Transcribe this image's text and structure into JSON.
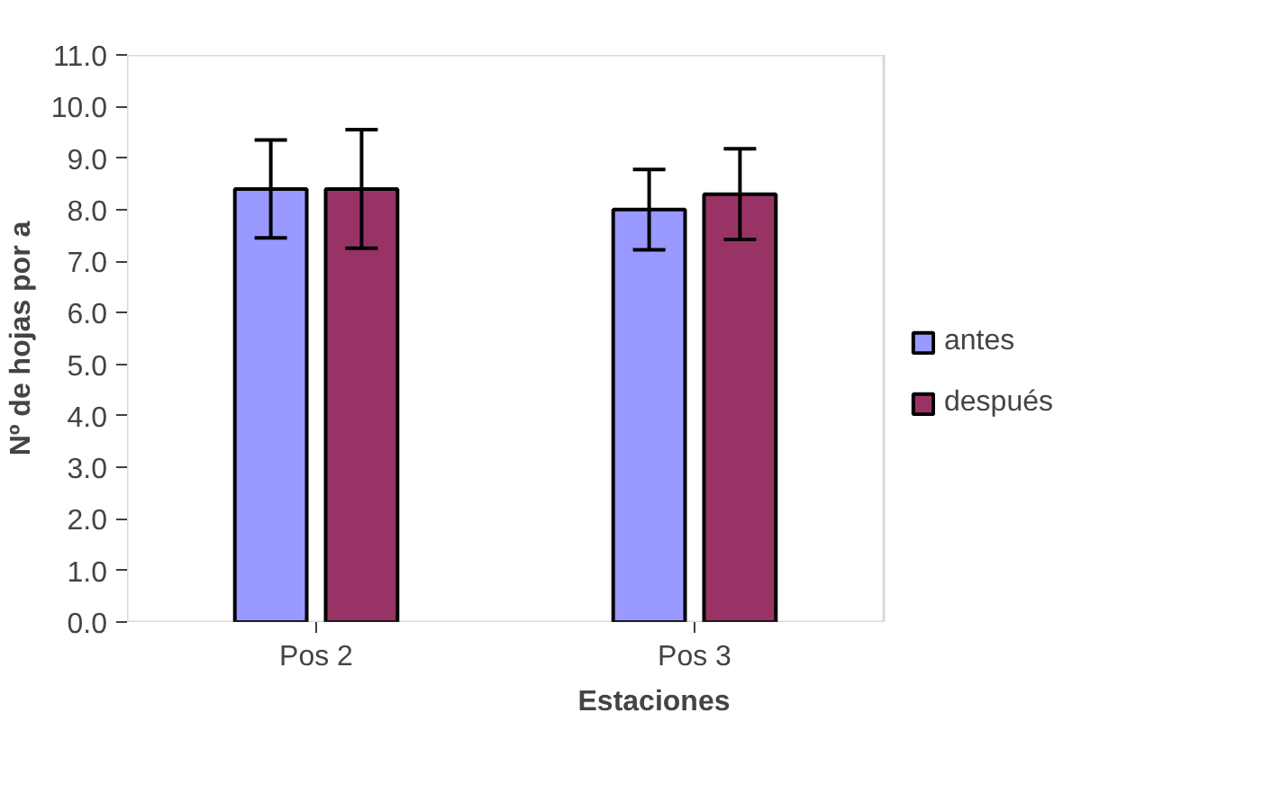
{
  "chart_data": {
    "type": "bar",
    "xlabel": "Estaciones",
    "ylabel": "Nº de hojas por a",
    "categories": [
      "Pos 2",
      "Pos 3"
    ],
    "series": [
      {
        "name": "antes",
        "color": "#9999ff",
        "values": [
          8.4,
          8.0
        ],
        "errors": [
          0.95,
          0.78
        ]
      },
      {
        "name": "después",
        "color": "#993366",
        "values": [
          8.4,
          8.3
        ],
        "errors": [
          1.15,
          0.88
        ]
      }
    ],
    "ylim": [
      0,
      11
    ],
    "yticks": [
      {
        "value": 0,
        "label": "0.0"
      },
      {
        "value": 1,
        "label": "1.0"
      },
      {
        "value": 2,
        "label": "2.0"
      },
      {
        "value": 3,
        "label": "3.0"
      },
      {
        "value": 4,
        "label": "4.0"
      },
      {
        "value": 5,
        "label": "5.0"
      },
      {
        "value": 6,
        "label": "6.0"
      },
      {
        "value": 7,
        "label": "7.0"
      },
      {
        "value": 8,
        "label": "8.0"
      },
      {
        "value": 9,
        "label": "9.0"
      },
      {
        "value": 10,
        "label": "10.0"
      },
      {
        "value": 11,
        "label": "11.0"
      }
    ],
    "grid": false,
    "legend": "right"
  }
}
